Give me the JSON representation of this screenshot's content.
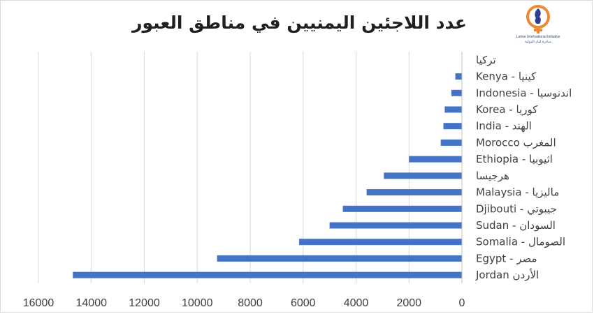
{
  "chart_data": {
    "type": "bar",
    "orientation": "horizontal",
    "title": "عدد اللاجئين اليمنيين في مناطق العبور",
    "categories": [
      "تركيا",
      "Kenya - كينيا",
      "Indonesia - اندنوسيا",
      "Korea - كوريا",
      "India - الهند",
      "Morocco المغرب",
      "Ethiopia - اثيوبيا",
      "هرجيسا",
      "Malaysia - ماليزيا",
      "Djibouti - جيبوتي",
      "Sudan - السودان",
      "Somalia - الصومال",
      "Egypt - مصر",
      "Jordan الأردن"
    ],
    "values": [
      10,
      250,
      400,
      650,
      700,
      800,
      2000,
      2950,
      3600,
      4500,
      5000,
      6150,
      9250,
      14700
    ],
    "xlim": [
      0,
      16000
    ],
    "x_ticks": [
      "0",
      "2000",
      "4000",
      "6000",
      "8000",
      "10000",
      "12000",
      "14000",
      "16000"
    ],
    "x_reversed": true,
    "grid": true,
    "bar_color": "#4472c4",
    "gridline_color": "#d9d9d9",
    "xlabel": "",
    "ylabel": ""
  },
  "logo": {
    "line1": "Lamar International Initiative",
    "line2": "مبادرة لمار الدولية",
    "colors": [
      "#ee8a2e",
      "#2c3e8c"
    ]
  }
}
